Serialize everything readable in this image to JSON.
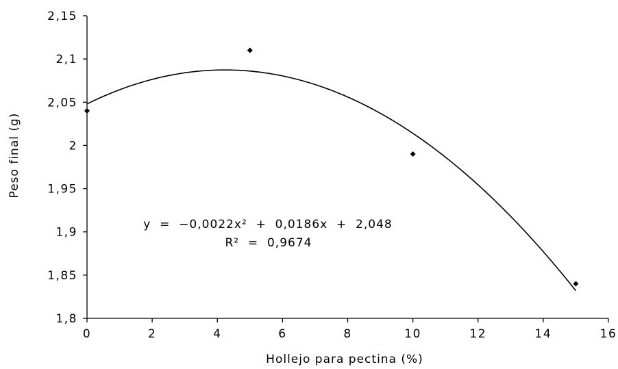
{
  "chart_data": {
    "type": "scatter",
    "title": "",
    "xlabel": "Hollejo para pectina (%)",
    "ylabel": "Peso final (g)",
    "xlim": [
      0,
      16
    ],
    "ylim": [
      1.8,
      2.15
    ],
    "x_ticks": [
      {
        "value": 0,
        "label": "0"
      },
      {
        "value": 2,
        "label": "2"
      },
      {
        "value": 4,
        "label": "4"
      },
      {
        "value": 6,
        "label": "6"
      },
      {
        "value": 8,
        "label": "8"
      },
      {
        "value": 10,
        "label": "10"
      },
      {
        "value": 12,
        "label": "12"
      },
      {
        "value": 14,
        "label": "14"
      },
      {
        "value": 16,
        "label": "16"
      }
    ],
    "y_ticks": [
      {
        "value": 1.8,
        "label": "1,8"
      },
      {
        "value": 1.85,
        "label": "1,85"
      },
      {
        "value": 1.9,
        "label": "1,9"
      },
      {
        "value": 1.95,
        "label": "1,95"
      },
      {
        "value": 2.0,
        "label": "2"
      },
      {
        "value": 2.05,
        "label": "2,05"
      },
      {
        "value": 2.1,
        "label": "2,1"
      },
      {
        "value": 2.15,
        "label": "2,15"
      }
    ],
    "points": [
      {
        "x": 0,
        "y": 2.04
      },
      {
        "x": 5,
        "y": 2.11
      },
      {
        "x": 10,
        "y": 1.99
      },
      {
        "x": 15,
        "y": 1.84
      }
    ],
    "trendline": {
      "type": "polynomial",
      "coefficients": {
        "a": -0.0022,
        "b": 0.0186,
        "c": 2.048
      },
      "x_range": [
        0,
        15
      ]
    },
    "annotations": {
      "equation": "y  =  −0,0022x²  +  0,0186x  +  2,048",
      "r_squared": "R²  =  0,9674"
    },
    "grid": false,
    "legend": "none"
  }
}
